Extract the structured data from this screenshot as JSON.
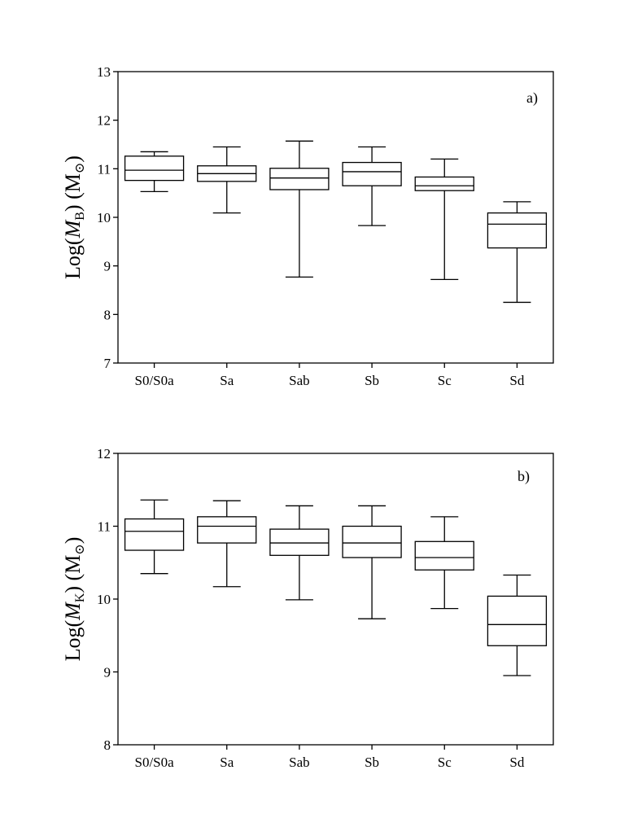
{
  "chart_data": [
    {
      "type": "box",
      "panel_label": "a)",
      "ylabel": {
        "prefix": "Log(",
        "var": "M",
        "sub": "B",
        "suffix": ") (M",
        "sub2": "⊙",
        "end": ")"
      },
      "ylim": [
        7,
        13
      ],
      "yticks": [
        "7",
        "8",
        "9",
        "10",
        "11",
        "12",
        "13"
      ],
      "categories": [
        "S0/S0a",
        "Sa",
        "Sab",
        "Sb",
        "Sc",
        "Sd"
      ],
      "boxes": [
        {
          "min": 10.53,
          "q1": 10.76,
          "median": 10.97,
          "q3": 11.26,
          "max": 11.35
        },
        {
          "min": 10.09,
          "q1": 10.74,
          "median": 10.9,
          "q3": 11.06,
          "max": 11.45
        },
        {
          "min": 8.77,
          "q1": 10.57,
          "median": 10.81,
          "q3": 11.01,
          "max": 11.57
        },
        {
          "min": 9.83,
          "q1": 10.65,
          "median": 10.94,
          "q3": 11.13,
          "max": 11.45
        },
        {
          "min": 8.72,
          "q1": 10.55,
          "median": 10.65,
          "q3": 10.83,
          "max": 11.2
        },
        {
          "min": 8.25,
          "q1": 9.37,
          "median": 9.86,
          "q3": 10.09,
          "max": 10.32
        }
      ]
    },
    {
      "type": "box",
      "panel_label": "b)",
      "ylabel": {
        "prefix": "Log(",
        "var": "M",
        "sub": "K",
        "suffix": ") (M",
        "sub2": "⊙",
        "end": ")"
      },
      "ylim": [
        8,
        12
      ],
      "yticks": [
        "8",
        "9",
        "10",
        "11",
        "12"
      ],
      "categories": [
        "S0/S0a",
        "Sa",
        "Sab",
        "Sb",
        "Sc",
        "Sd"
      ],
      "boxes": [
        {
          "min": 10.35,
          "q1": 10.67,
          "median": 10.93,
          "q3": 11.1,
          "max": 11.36
        },
        {
          "min": 10.17,
          "q1": 10.77,
          "median": 11.0,
          "q3": 11.13,
          "max": 11.35
        },
        {
          "min": 9.99,
          "q1": 10.6,
          "median": 10.77,
          "q3": 10.96,
          "max": 11.28
        },
        {
          "min": 9.73,
          "q1": 10.57,
          "median": 10.77,
          "q3": 11.0,
          "max": 11.28
        },
        {
          "min": 9.87,
          "q1": 10.4,
          "median": 10.57,
          "q3": 10.79,
          "max": 11.13
        },
        {
          "min": 8.95,
          "q1": 9.36,
          "median": 9.65,
          "q3": 10.04,
          "max": 10.33
        }
      ]
    }
  ]
}
